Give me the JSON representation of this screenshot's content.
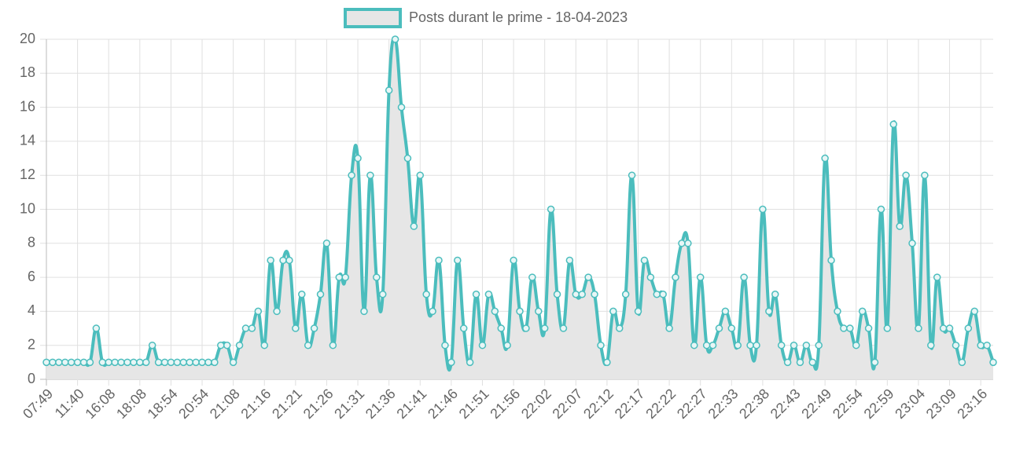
{
  "chart_data": {
    "type": "line",
    "categories": [
      "07:49",
      null,
      null,
      null,
      null,
      "11:40",
      null,
      null,
      null,
      null,
      "16:08",
      null,
      null,
      null,
      null,
      "18:08",
      null,
      null,
      null,
      null,
      "18:54",
      null,
      null,
      null,
      null,
      "20:54",
      null,
      null,
      null,
      null,
      "21:08",
      null,
      null,
      null,
      null,
      "21:16",
      null,
      null,
      null,
      null,
      "21:21",
      null,
      null,
      null,
      null,
      "21:26",
      null,
      null,
      null,
      null,
      "21:31",
      null,
      null,
      null,
      null,
      "21:36",
      null,
      null,
      null,
      null,
      "21:41",
      null,
      null,
      null,
      null,
      "21:46",
      null,
      null,
      null,
      null,
      "21:51",
      null,
      null,
      null,
      null,
      "21:56",
      null,
      null,
      null,
      null,
      "22:02",
      null,
      null,
      null,
      null,
      "22:07",
      null,
      null,
      null,
      null,
      "22:12",
      null,
      null,
      null,
      null,
      "22:17",
      null,
      null,
      null,
      null,
      "22:22",
      null,
      null,
      null,
      null,
      "22:27",
      null,
      null,
      null,
      null,
      "22:33",
      null,
      null,
      null,
      null,
      "22:38",
      null,
      null,
      null,
      null,
      "22:43",
      null,
      null,
      null,
      null,
      "22:49",
      null,
      null,
      null,
      null,
      "22:54",
      null,
      null,
      null,
      null,
      "22:59",
      null,
      null,
      null,
      null,
      "23:04",
      null,
      null,
      null,
      null,
      "23:09",
      null,
      null,
      null,
      null,
      "23:16",
      null,
      null
    ],
    "series": [
      {
        "name": "Posts durant le prime - 18-04-2023",
        "color": "#4bbdbd",
        "fill": "#e6e6e6",
        "values": [
          1,
          1,
          1,
          1,
          1,
          1,
          1,
          1,
          3,
          1,
          1,
          1,
          1,
          1,
          1,
          1,
          1,
          2,
          1,
          1,
          1,
          1,
          1,
          1,
          1,
          1,
          1,
          1,
          2,
          2,
          1,
          2,
          3,
          3,
          4,
          2,
          7,
          4,
          7,
          7,
          3,
          5,
          2,
          3,
          5,
          8,
          2,
          6,
          6,
          12,
          13,
          4,
          12,
          6,
          5,
          17,
          20,
          16,
          13,
          9,
          12,
          5,
          4,
          7,
          2,
          1,
          7,
          3,
          1,
          5,
          2,
          5,
          4,
          3,
          2,
          7,
          4,
          3,
          6,
          4,
          3,
          10,
          5,
          3,
          7,
          5,
          5,
          6,
          5,
          2,
          1,
          4,
          3,
          5,
          12,
          4,
          7,
          6,
          5,
          5,
          3,
          6,
          8,
          8,
          2,
          6,
          2,
          2,
          3,
          4,
          3,
          2,
          6,
          2,
          2,
          10,
          4,
          5,
          2,
          1,
          2,
          1,
          2,
          1,
          2,
          13,
          7,
          4,
          3,
          3,
          2,
          4,
          3,
          1,
          10,
          3,
          15,
          9,
          12,
          8,
          3,
          12,
          2,
          6,
          3,
          3,
          2,
          1,
          3,
          4,
          2,
          2,
          1
        ]
      }
    ],
    "ylim": [
      0,
      20
    ],
    "yticks": [
      0,
      2,
      4,
      6,
      8,
      10,
      12,
      14,
      16,
      18,
      20
    ],
    "grid": true
  }
}
